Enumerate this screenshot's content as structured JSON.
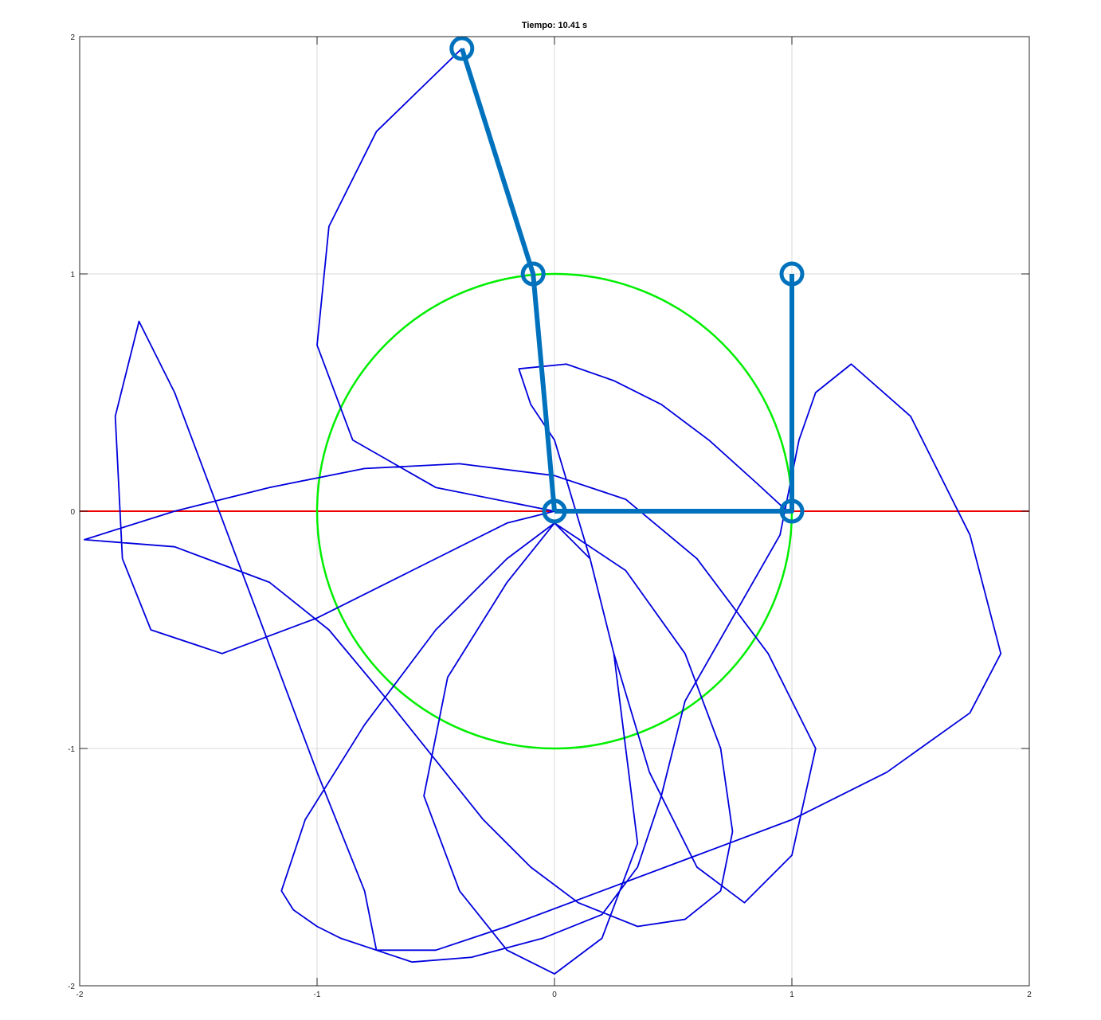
{
  "chart_data": {
    "type": "line",
    "title": "Tiempo: 10.41 s",
    "xlabel": "",
    "ylabel": "",
    "xlim": [
      -2,
      2
    ],
    "ylim": [
      -2,
      2
    ],
    "grid": true,
    "x_ticks": [
      "-2",
      "-1",
      "0",
      "1",
      "2"
    ],
    "y_ticks": [
      "2",
      "1",
      "0",
      "-1",
      "-2"
    ],
    "colors": {
      "trace": "#0000dd",
      "circle": "#00ee00",
      "axis_line": "#ee0000",
      "pendulum": "#0072bd",
      "grid": "#d9d9d9"
    },
    "series": [
      {
        "role": "reference-line",
        "x": [
          -2,
          2
        ],
        "y": [
          0,
          0
        ]
      },
      {
        "role": "unit-circle",
        "center": [
          0,
          0
        ],
        "radius": 1
      },
      {
        "role": "pendulum-left",
        "x": [
          0,
          -0.09,
          -0.39
        ],
        "y": [
          0,
          1.0,
          1.95
        ]
      },
      {
        "role": "pendulum-right",
        "x": [
          0,
          1.0,
          1.0
        ],
        "y": [
          0,
          0,
          1.0
        ]
      },
      {
        "role": "trajectory",
        "x": [
          -0.39,
          -0.75,
          -0.95,
          -1.0,
          -0.85,
          -0.5,
          -0.15,
          0.0,
          -0.2,
          -0.6,
          -1.0,
          -1.4,
          -1.7,
          -1.82,
          -1.85,
          -1.75,
          -1.6,
          -1.3,
          -1.0,
          -0.8,
          -0.75,
          -0.6,
          -0.35,
          -0.05,
          0.2,
          0.35,
          0.45,
          0.55,
          0.75,
          0.95,
          1.03,
          1.1,
          1.25,
          1.5,
          1.75,
          1.88,
          1.75,
          1.4,
          1.0,
          0.6,
          0.2,
          -0.2,
          -0.5,
          -0.75,
          -0.9,
          -1.0,
          -1.1,
          -1.15,
          -1.05,
          -0.8,
          -0.5,
          -0.2,
          0.0,
          0.15,
          0.25,
          0.3,
          0.35,
          0.2,
          0.0,
          -0.2,
          -0.4,
          -0.55,
          -0.45,
          -0.2,
          0.0,
          0.3,
          0.55,
          0.7,
          0.75,
          0.7,
          0.55,
          0.35,
          0.1,
          -0.1,
          -0.3,
          -0.5,
          -0.7,
          -0.95,
          -1.2,
          -1.6,
          -1.98,
          -1.6,
          -1.2,
          -0.8,
          -0.4,
          0.0,
          0.3,
          0.6,
          0.9,
          1.1,
          1.0,
          0.8,
          0.6,
          0.4,
          0.25,
          0.15,
          0.0,
          -0.1,
          -0.15,
          0.05,
          0.25,
          0.45,
          0.65,
          0.85,
          0.98,
          1.0
        ],
        "y": [
          1.95,
          1.6,
          1.2,
          0.7,
          0.3,
          0.1,
          0.03,
          0.0,
          -0.05,
          -0.25,
          -0.45,
          -0.6,
          -0.5,
          -0.2,
          0.4,
          0.8,
          0.5,
          -0.3,
          -1.1,
          -1.6,
          -1.85,
          -1.9,
          -1.88,
          -1.8,
          -1.7,
          -1.5,
          -1.2,
          -0.8,
          -0.45,
          -0.1,
          0.3,
          0.5,
          0.62,
          0.4,
          -0.1,
          -0.6,
          -0.85,
          -1.1,
          -1.3,
          -1.45,
          -1.6,
          -1.75,
          -1.85,
          -1.85,
          -1.8,
          -1.75,
          -1.68,
          -1.6,
          -1.3,
          -0.9,
          -0.5,
          -0.2,
          -0.05,
          -0.2,
          -0.6,
          -1.0,
          -1.4,
          -1.8,
          -1.95,
          -1.85,
          -1.6,
          -1.2,
          -0.7,
          -0.3,
          -0.05,
          -0.25,
          -0.6,
          -1.0,
          -1.35,
          -1.6,
          -1.72,
          -1.75,
          -1.65,
          -1.5,
          -1.3,
          -1.05,
          -0.8,
          -0.5,
          -0.3,
          -0.15,
          -0.12,
          0.0,
          0.1,
          0.18,
          0.2,
          0.15,
          0.05,
          -0.2,
          -0.6,
          -1.0,
          -1.45,
          -1.65,
          -1.5,
          -1.1,
          -0.6,
          -0.2,
          0.3,
          0.45,
          0.6,
          0.62,
          0.55,
          0.45,
          0.3,
          0.12,
          0.0,
          0.0
        ]
      }
    ]
  }
}
